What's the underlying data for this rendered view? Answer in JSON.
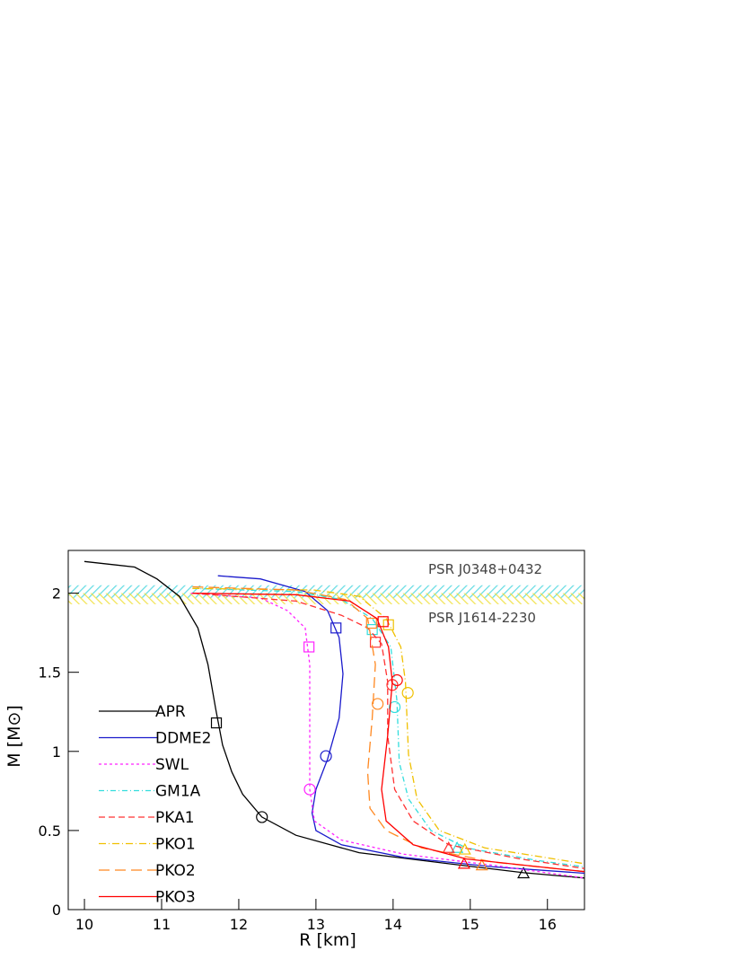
{
  "chart_data": {
    "type": "line",
    "xlabel": "R [km]",
    "ylabel": "M [M⊙]",
    "xlim": [
      9.79,
      16.48
    ],
    "ylim": [
      0,
      2.27
    ],
    "xticks": [
      10,
      11,
      12,
      13,
      14,
      15,
      16
    ],
    "yticks": [
      0,
      0.5,
      1,
      1.5,
      2
    ],
    "legend": "lower left",
    "bands": [
      {
        "name": "PSR J0348+0432",
        "color": "#55d8e0",
        "range": [
          1.97,
          2.05
        ]
      },
      {
        "name": "PSR J1614-2230",
        "color": "#f0e040",
        "range": [
          1.93,
          2.0
        ]
      }
    ],
    "series": [
      {
        "name": "APR",
        "color": "#000000",
        "dash": "none",
        "x": [
          10.0,
          10.65,
          10.94,
          11.23,
          11.47,
          11.6,
          11.7,
          11.79,
          11.91,
          12.05,
          12.3,
          12.74,
          13.56,
          14.72,
          15.69,
          16.48
        ],
        "values": [
          2.2,
          2.165,
          2.09,
          1.98,
          1.78,
          1.55,
          1.27,
          1.04,
          0.87,
          0.73,
          0.585,
          0.47,
          0.36,
          0.29,
          0.233,
          0.2
        ],
        "markers": [
          {
            "shape": "square",
            "x": 11.71,
            "y": 1.18
          },
          {
            "shape": "circle",
            "x": 12.3,
            "y": 0.585
          },
          {
            "shape": "triangle",
            "x": 15.69,
            "y": 0.23
          }
        ]
      },
      {
        "name": "DDME2",
        "color": "#1a1acc",
        "dash": "none",
        "x": [
          11.73,
          12.28,
          12.86,
          13.15,
          13.3,
          13.35,
          13.3,
          13.15,
          13.0,
          12.95,
          13.0,
          13.33,
          14.14,
          15.3,
          16.48
        ],
        "values": [
          2.11,
          2.09,
          2.01,
          1.89,
          1.72,
          1.49,
          1.21,
          0.95,
          0.76,
          0.61,
          0.5,
          0.41,
          0.33,
          0.27,
          0.23
        ],
        "markers": [
          {
            "shape": "square",
            "x": 13.26,
            "y": 1.78
          },
          {
            "shape": "circle",
            "x": 13.13,
            "y": 0.97
          }
        ]
      },
      {
        "name": "SWL",
        "color": "#ff22ff",
        "dash": "3,3",
        "x": [
          11.38,
          12.28,
          12.63,
          12.86,
          12.92,
          12.92,
          12.92,
          12.98,
          13.33,
          14.14,
          15.3,
          16.48
        ],
        "values": [
          2.0,
          1.97,
          1.89,
          1.78,
          1.55,
          1.21,
          0.76,
          0.56,
          0.44,
          0.35,
          0.28,
          0.2
        ],
        "markers": [
          {
            "shape": "square",
            "x": 12.91,
            "y": 1.66
          },
          {
            "shape": "circle",
            "x": 12.92,
            "y": 0.76
          }
        ]
      },
      {
        "name": "GM1A",
        "color": "#33dddd",
        "dash": "6,3,1,3",
        "x": [
          11.4,
          12.74,
          13.33,
          13.73,
          13.97,
          14.05,
          14.08,
          14.2,
          14.49,
          14.95,
          15.88,
          16.48
        ],
        "values": [
          2.03,
          2.01,
          1.96,
          1.84,
          1.66,
          1.32,
          0.93,
          0.7,
          0.5,
          0.39,
          0.31,
          0.27
        ],
        "markers": [
          {
            "shape": "square",
            "x": 13.73,
            "y": 1.77
          },
          {
            "shape": "circle",
            "x": 14.02,
            "y": 1.28
          },
          {
            "shape": "triangle",
            "x": 14.83,
            "y": 0.39
          }
        ]
      },
      {
        "name": "PKA1",
        "color": "#ff3333",
        "dash": "7,4",
        "x": [
          11.4,
          12.74,
          13.33,
          13.67,
          13.85,
          13.93,
          13.93,
          14.02,
          14.26,
          14.72,
          15.65,
          16.48
        ],
        "values": [
          2.0,
          1.95,
          1.86,
          1.78,
          1.68,
          1.44,
          1.1,
          0.76,
          0.56,
          0.41,
          0.32,
          0.26
        ],
        "markers": [
          {
            "shape": "square",
            "x": 13.77,
            "y": 1.69
          },
          {
            "shape": "circle",
            "x": 13.99,
            "y": 1.42
          },
          {
            "shape": "triangle",
            "x": 14.72,
            "y": 0.39
          }
        ]
      },
      {
        "name": "PKO1",
        "color": "#f0c000",
        "dash": "8,3,1,3",
        "x": [
          11.4,
          12.98,
          13.56,
          13.91,
          14.1,
          14.16,
          14.2,
          14.31,
          14.6,
          15.19,
          16.48
        ],
        "values": [
          2.03,
          2.02,
          1.98,
          1.84,
          1.66,
          1.44,
          0.98,
          0.7,
          0.5,
          0.39,
          0.29
        ],
        "markers": [
          {
            "shape": "square",
            "x": 13.94,
            "y": 1.8
          },
          {
            "shape": "circle",
            "x": 14.19,
            "y": 1.37
          },
          {
            "shape": "triangle",
            "x": 14.93,
            "y": 0.38
          }
        ]
      },
      {
        "name": "PKO2",
        "color": "#ff8820",
        "dash": "12,6",
        "x": [
          11.4,
          12.74,
          13.38,
          13.67,
          13.77,
          13.73,
          13.67,
          13.7,
          13.91,
          14.37,
          15.3,
          16.48
        ],
        "values": [
          2.04,
          2.02,
          1.96,
          1.84,
          1.55,
          1.21,
          0.87,
          0.64,
          0.5,
          0.39,
          0.3,
          0.24
        ],
        "markers": [
          {
            "shape": "square",
            "x": 13.72,
            "y": 1.81
          },
          {
            "shape": "circle",
            "x": 13.8,
            "y": 1.3
          },
          {
            "shape": "triangle",
            "x": 15.15,
            "y": 0.28
          }
        ]
      },
      {
        "name": "PKO3",
        "color": "#ff0000",
        "dash": "none",
        "x": [
          11.4,
          12.74,
          13.44,
          13.79,
          13.94,
          13.99,
          13.93,
          13.85,
          13.91,
          14.26,
          14.95,
          16.48
        ],
        "values": [
          2.0,
          1.99,
          1.95,
          1.84,
          1.66,
          1.44,
          1.1,
          0.76,
          0.56,
          0.41,
          0.32,
          0.24
        ],
        "markers": [
          {
            "shape": "square",
            "x": 13.87,
            "y": 1.82
          },
          {
            "shape": "circle",
            "x": 14.05,
            "y": 1.45
          },
          {
            "shape": "triangle",
            "x": 14.92,
            "y": 0.29
          }
        ]
      }
    ]
  }
}
